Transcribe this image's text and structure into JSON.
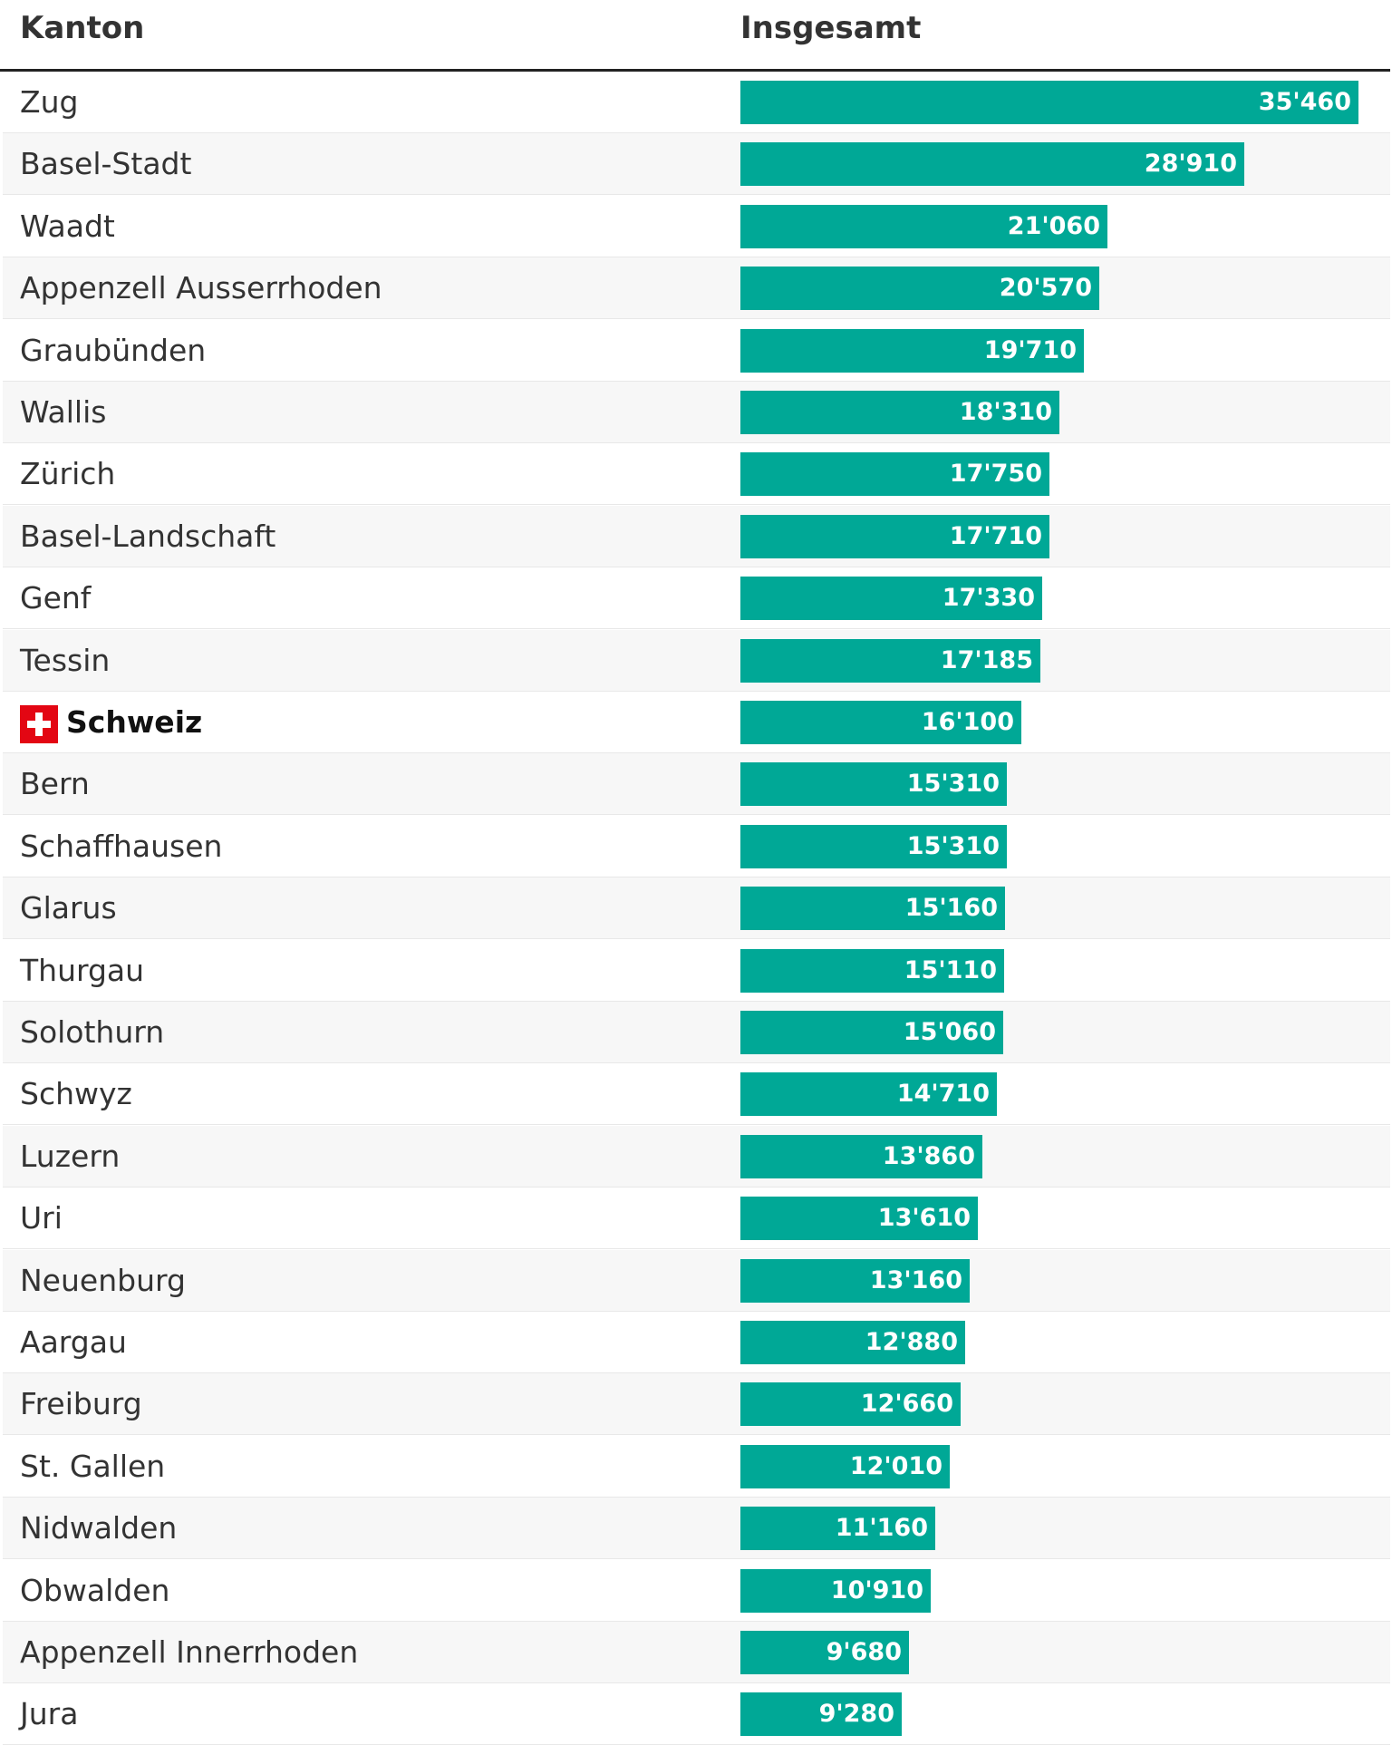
{
  "header": {
    "col_name": "Kanton",
    "col_value": "Insgesamt"
  },
  "colors": {
    "bar": "#00a896",
    "flag": "#e30613"
  },
  "chart_data": {
    "type": "bar",
    "orientation": "horizontal",
    "title": "",
    "xlabel": "",
    "ylabel": "",
    "xlim": [
      0,
      35460
    ],
    "categories": [
      "Zug",
      "Basel-Stadt",
      "Waadt",
      "Appenzell Ausserrhoden",
      "Graubünden",
      "Wallis",
      "Zürich",
      "Basel-Landschaft",
      "Genf",
      "Tessin",
      "Schweiz",
      "Bern",
      "Schaffhausen",
      "Glarus",
      "Thurgau",
      "Solothurn",
      "Schwyz",
      "Luzern",
      "Uri",
      "Neuenburg",
      "Aargau",
      "Freiburg",
      "St. Gallen",
      "Nidwalden",
      "Obwalden",
      "Appenzell Innerrhoden",
      "Jura"
    ],
    "values": [
      35460,
      28910,
      21060,
      20570,
      19710,
      18310,
      17750,
      17710,
      17330,
      17185,
      16100,
      15310,
      15310,
      15160,
      15110,
      15060,
      14710,
      13860,
      13610,
      13160,
      12880,
      12660,
      12010,
      11160,
      10910,
      9680,
      9280
    ],
    "labels": [
      "35'460",
      "28'910",
      "21'060",
      "20'570",
      "19'710",
      "18'310",
      "17'750",
      "17'710",
      "17'330",
      "17'185",
      "16'100",
      "15'310",
      "15'310",
      "15'160",
      "15'110",
      "15'060",
      "14'710",
      "13'860",
      "13'610",
      "13'160",
      "12'880",
      "12'660",
      "12'010",
      "11'160",
      "10'910",
      "9'680",
      "9'280"
    ],
    "highlight": "Schweiz",
    "highlight_icon": "swiss-flag-icon"
  }
}
